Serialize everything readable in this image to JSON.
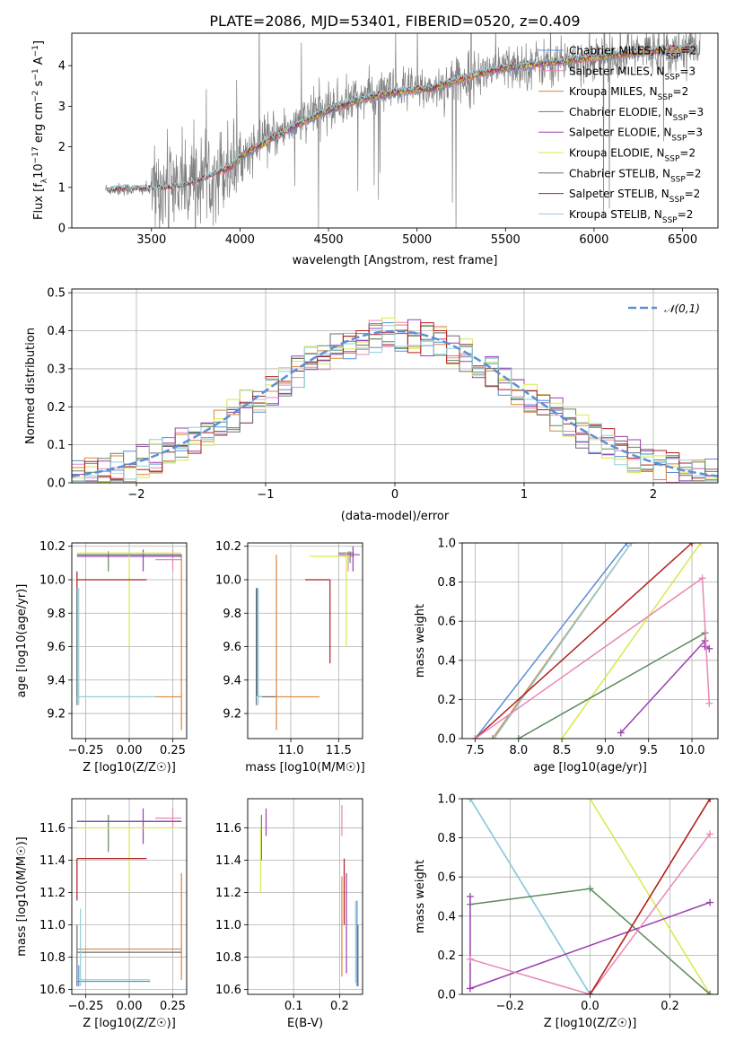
{
  "figure_title": "PLATE=2086, MJD=53401, FIBERID=0520, z=0.409",
  "model_colors": [
    "#5b8fd6",
    "#e887b8",
    "#d9853b",
    "#5c8a5c",
    "#9b3fb0",
    "#d9e84a",
    "#6b6b6b",
    "#b21f1f",
    "#8fd0d8"
  ],
  "chart_data": [
    {
      "id": "spectrum",
      "type": "line",
      "title": "PLATE=2086, MJD=53401, FIBERID=0520, z=0.409",
      "xlabel": "wavelength [Angstrom, rest frame]",
      "ylabel": "Flux [f_λ 10^-17 erg cm^-2 s^-1 A^-1]",
      "xlim": [
        3050,
        6700
      ],
      "ylim": [
        0,
        4.8
      ],
      "xticks": [
        3500,
        4000,
        4500,
        5000,
        5500,
        6000,
        6500
      ],
      "yticks": [
        0,
        1,
        2,
        3,
        4
      ],
      "grid": false,
      "legend_position": "right",
      "data_color": "#808080",
      "data_anchor_x": [
        3240,
        3500,
        3700,
        3950,
        4100,
        4300,
        4500,
        4700,
        4900,
        5100,
        5300,
        5500,
        5700,
        5900,
        6100,
        6300,
        6550
      ],
      "data_anchor_y": [
        0.95,
        0.95,
        1.15,
        1.55,
        2.05,
        2.55,
        2.95,
        3.25,
        3.4,
        3.45,
        3.75,
        3.95,
        4.05,
        4.15,
        4.25,
        4.35,
        4.45
      ],
      "model_anchor_x": [
        3240,
        3300,
        3500,
        3650,
        3800,
        3950,
        4000,
        4100,
        4300,
        4500,
        4700,
        4900,
        5100,
        5300,
        5500,
        5700,
        5900,
        6100,
        6300,
        6550
      ],
      "model_anchor_y": [
        0.9,
        0.95,
        0.95,
        1.0,
        1.2,
        1.5,
        1.75,
        2.0,
        2.5,
        2.9,
        3.2,
        3.35,
        3.45,
        3.75,
        3.95,
        4.05,
        4.15,
        4.25,
        4.35,
        4.45
      ],
      "series": [
        {
          "name": "Chabrier MILES, N_SSP=2",
          "color": "#5b8fd6",
          "x_start": 3900
        },
        {
          "name": "Salpeter MILES, N_SSP=3",
          "color": "#e887b8",
          "x_start": 3900
        },
        {
          "name": "Kroupa MILES, N_SSP=2",
          "color": "#d9853b",
          "x_start": 3900
        },
        {
          "name": "Chabrier ELODIE, N_SSP=3",
          "color": "#5c8a5c",
          "x_start": 3900
        },
        {
          "name": "Salpeter ELODIE, N_SSP=3",
          "color": "#9b3fb0",
          "x_start": 3900
        },
        {
          "name": "Kroupa ELODIE, N_SSP=2",
          "color": "#d9e84a",
          "x_start": 3900
        },
        {
          "name": "Chabrier STELIB, N_SSP=2",
          "color": "#6b6b6b",
          "x_start": 3240
        },
        {
          "name": "Salpeter STELIB, N_SSP=2",
          "color": "#b21f1f",
          "x_start": 3240
        },
        {
          "name": "Kroupa STELIB, N_SSP=2",
          "color": "#8fd0d8",
          "x_start": 3240
        }
      ]
    },
    {
      "id": "residuals",
      "type": "histogram",
      "xlabel": "(data-model)/error",
      "ylabel": "Normed distribution",
      "xlim": [
        -2.5,
        2.5
      ],
      "ylim": [
        0,
        0.51
      ],
      "xticks": [
        -2,
        -1,
        0,
        1,
        2
      ],
      "yticks": [
        0.0,
        0.1,
        0.2,
        0.3,
        0.4,
        0.5
      ],
      "grid": true,
      "legend_position": "top-right",
      "gaussian": {
        "name": "𝒩(0,1)",
        "mean": 0,
        "sigma": 1,
        "color": "#5b8fd6"
      },
      "bin_width": 0.1
    },
    {
      "id": "age_vs_Z",
      "type": "errorbar",
      "xlabel": "Z [log10(Z/Z☉)]",
      "ylabel": "age [log10(age/yr)]",
      "xlim": [
        -0.33,
        0.33
      ],
      "ylim": [
        9.05,
        10.22
      ],
      "xticks": [
        -0.25,
        0.0,
        0.25
      ],
      "yticks": [
        9.2,
        9.4,
        9.6,
        9.8,
        10.0,
        10.2
      ],
      "grid": true,
      "lines": [
        {
          "color": "#5b8fd6",
          "h": [
            -0.3,
            0.3,
            10.15
          ],
          "v": [
            -0.3,
            9.3,
            9.95
          ]
        },
        {
          "color": "#e887b8",
          "h": [
            0.15,
            0.3,
            10.12
          ],
          "v": [
            0.25,
            10.05,
            10.18
          ]
        },
        {
          "color": "#d9853b",
          "h": [
            -0.3,
            0.3,
            9.3
          ],
          "v": [
            0.3,
            9.1,
            10.15
          ]
        },
        {
          "color": "#5c8a5c",
          "h": [
            -0.3,
            0.3,
            10.15
          ],
          "v": [
            -0.12,
            10.05,
            10.17
          ]
        },
        {
          "color": "#9b3fb0",
          "h": [
            -0.3,
            0.3,
            10.14
          ],
          "v": [
            0.08,
            10.05,
            10.18
          ]
        },
        {
          "color": "#d9e84a",
          "h": [
            -0.3,
            0.3,
            10.16
          ],
          "v": [
            0.0,
            9.6,
            10.16
          ]
        },
        {
          "color": "#6b6b6b",
          "h": [
            -0.3,
            0.3,
            10.15
          ],
          "v": [
            -0.3,
            9.25,
            9.95
          ]
        },
        {
          "color": "#b21f1f",
          "h": [
            -0.3,
            0.1,
            10.0
          ],
          "v": [
            -0.3,
            9.95,
            10.05
          ]
        },
        {
          "color": "#8fd0d8",
          "h": [
            -0.3,
            0.15,
            9.3
          ],
          "v": [
            -0.29,
            9.25,
            9.95
          ]
        }
      ]
    },
    {
      "id": "age_vs_mass",
      "type": "errorbar",
      "xlabel": "mass [log10(M/M☉)]",
      "ylabel": "",
      "xlim": [
        10.55,
        11.75
      ],
      "ylim": [
        9.05,
        10.22
      ],
      "xticks": [
        11.0,
        11.5
      ],
      "yticks": [
        9.2,
        9.4,
        9.6,
        9.8,
        10.0,
        10.2
      ],
      "grid": true,
      "lines": [
        {
          "color": "#5b8fd6",
          "h": [
            10.63,
            10.7,
            9.3
          ],
          "v": [
            10.65,
            9.3,
            9.95
          ]
        },
        {
          "color": "#e887b8",
          "h": [
            11.55,
            11.66,
            10.14
          ],
          "v": [
            11.6,
            10.05,
            10.17
          ]
        },
        {
          "color": "#d9853b",
          "h": [
            10.63,
            11.3,
            9.3
          ],
          "v": [
            10.85,
            9.1,
            10.15
          ]
        },
        {
          "color": "#5c8a5c",
          "h": [
            11.5,
            11.66,
            10.16
          ],
          "v": [
            11.62,
            10.1,
            10.17
          ]
        },
        {
          "color": "#9b3fb0",
          "h": [
            11.5,
            11.72,
            10.15
          ],
          "v": [
            11.65,
            10.05,
            10.2
          ]
        },
        {
          "color": "#d9e84a",
          "h": [
            11.2,
            11.62,
            10.14
          ],
          "v": [
            11.58,
            9.6,
            10.16
          ]
        },
        {
          "color": "#6b6b6b",
          "h": [
            10.63,
            10.84,
            9.3
          ],
          "v": [
            10.64,
            9.25,
            9.95
          ]
        },
        {
          "color": "#b21f1f",
          "h": [
            11.15,
            11.41,
            10.0
          ],
          "v": [
            11.41,
            9.5,
            10.0
          ]
        },
        {
          "color": "#8fd0d8",
          "h": [
            10.63,
            10.7,
            9.3
          ],
          "v": [
            10.66,
            9.25,
            9.95
          ]
        }
      ]
    },
    {
      "id": "weight_vs_age",
      "type": "line",
      "xlabel": "age [log10(age/yr)]",
      "ylabel": "mass weight",
      "xlim": [
        7.35,
        10.3
      ],
      "ylim": [
        0.0,
        1.0
      ],
      "xticks": [
        7.5,
        8.0,
        8.5,
        9.0,
        9.5,
        10.0
      ],
      "yticks": [
        0.0,
        0.2,
        0.4,
        0.6,
        0.8,
        1.0
      ],
      "grid": true,
      "series": [
        {
          "color": "#5b8fd6",
          "x": [
            7.5,
            9.25
          ],
          "y": [
            0.0,
            1.0
          ]
        },
        {
          "color": "#d9853b",
          "x": [
            7.7,
            9.3
          ],
          "y": [
            0.0,
            1.0
          ]
        },
        {
          "color": "#8fd0d8",
          "x": [
            7.72,
            9.3
          ],
          "y": [
            0.0,
            1.0
          ]
        },
        {
          "color": "#b21f1f",
          "x": [
            7.5,
            10.0
          ],
          "y": [
            0.0,
            1.0
          ]
        },
        {
          "color": "#d9e84a",
          "x": [
            8.5,
            10.1
          ],
          "y": [
            0.0,
            1.0
          ]
        },
        {
          "color": "#5c8a5c",
          "x": [
            8.0,
            10.15
          ],
          "y": [
            0.0,
            0.54
          ]
        },
        {
          "color": "#9b3fb0",
          "x": [
            9.18,
            10.15,
            10.15,
            10.2
          ],
          "y": [
            0.03,
            0.5,
            0.47,
            0.46
          ]
        },
        {
          "color": "#e887b8",
          "x": [
            7.5,
            10.12,
            10.2
          ],
          "y": [
            0.0,
            0.82,
            0.18
          ]
        }
      ]
    },
    {
      "id": "mass_vs_Z",
      "type": "errorbar",
      "xlabel": "Z [log10(Z/Z☉)]",
      "ylabel": "mass [log10(M/M☉)]",
      "xlim": [
        -0.33,
        0.33
      ],
      "ylim": [
        10.57,
        11.78
      ],
      "xticks": [
        -0.25,
        0.0,
        0.25
      ],
      "yticks": [
        10.6,
        10.8,
        11.0,
        11.2,
        11.4,
        11.6
      ],
      "grid": true,
      "lines": [
        {
          "color": "#5b8fd6",
          "h": [
            -0.3,
            0.12,
            10.65
          ],
          "v": [
            -0.29,
            10.62,
            10.75
          ]
        },
        {
          "color": "#e887b8",
          "h": [
            0.15,
            0.3,
            11.66
          ],
          "v": [
            0.25,
            11.6,
            11.72
          ]
        },
        {
          "color": "#d9853b",
          "h": [
            -0.3,
            0.3,
            10.85
          ],
          "v": [
            0.3,
            10.66,
            11.32
          ]
        },
        {
          "color": "#5c8a5c",
          "h": [
            -0.3,
            0.3,
            11.64
          ],
          "v": [
            -0.12,
            11.45,
            11.68
          ]
        },
        {
          "color": "#9b3fb0",
          "h": [
            -0.3,
            0.3,
            11.64
          ],
          "v": [
            0.08,
            11.5,
            11.72
          ]
        },
        {
          "color": "#d9e84a",
          "h": [
            -0.3,
            0.3,
            11.6
          ],
          "v": [
            0.0,
            11.2,
            11.6
          ]
        },
        {
          "color": "#6b6b6b",
          "h": [
            -0.3,
            0.3,
            10.83
          ],
          "v": [
            -0.3,
            10.62,
            11.0
          ]
        },
        {
          "color": "#b21f1f",
          "h": [
            -0.3,
            0.1,
            11.41
          ],
          "v": [
            -0.3,
            11.15,
            11.41
          ]
        },
        {
          "color": "#8fd0d8",
          "h": [
            -0.3,
            0.12,
            10.66
          ],
          "v": [
            -0.28,
            10.62,
            11.1
          ]
        }
      ]
    },
    {
      "id": "mass_vs_ebv",
      "type": "errorbar",
      "xlabel": "E(B-V)",
      "ylabel": "",
      "xlim": [
        0.0,
        0.25
      ],
      "ylim": [
        10.57,
        11.78
      ],
      "xticks": [
        0.1,
        0.2
      ],
      "yticks": [
        10.6,
        10.8,
        11.0,
        11.2,
        11.4,
        11.6
      ],
      "grid": true,
      "lines": [
        {
          "color": "#5b8fd6",
          "v": [
            0.238,
            10.62,
            11.15
          ]
        },
        {
          "color": "#e887b8",
          "v": [
            0.205,
            11.55,
            11.74
          ]
        },
        {
          "color": "#d9853b",
          "v": [
            0.205,
            10.68,
            11.3
          ]
        },
        {
          "color": "#5c8a5c",
          "v": [
            0.03,
            11.4,
            11.68
          ]
        },
        {
          "color": "#9b3fb0",
          "v": [
            0.04,
            11.55,
            11.72
          ]
        },
        {
          "color": "#d9e84a",
          "v": [
            0.028,
            11.2,
            11.6
          ]
        },
        {
          "color": "#6b6b6b",
          "v": [
            0.24,
            10.62,
            11.0
          ]
        },
        {
          "color": "#b21f1f",
          "v": [
            0.21,
            11.0,
            11.41
          ]
        },
        {
          "color": "#8fd0d8",
          "v": [
            0.235,
            10.64,
            11.15
          ]
        },
        {
          "color": "#9b3fb0",
          "v": [
            0.215,
            10.7,
            11.32
          ]
        }
      ]
    },
    {
      "id": "weight_vs_Z",
      "type": "line",
      "xlabel": "Z [log10(Z/Z☉)]",
      "ylabel": "mass weight",
      "xlim": [
        -0.32,
        0.32
      ],
      "ylim": [
        0.0,
        1.0
      ],
      "xticks": [
        -0.2,
        0.0,
        0.2
      ],
      "yticks": [
        0.0,
        0.2,
        0.4,
        0.6,
        0.8,
        1.0
      ],
      "grid": true,
      "series": [
        {
          "color": "#5b8fd6",
          "x": [
            -0.3,
            0.0
          ],
          "y": [
            1.0,
            0.0
          ]
        },
        {
          "color": "#8fd0d8",
          "x": [
            -0.3,
            0.0
          ],
          "y": [
            1.0,
            0.0
          ]
        },
        {
          "color": "#d9e84a",
          "x": [
            0.0,
            0.3
          ],
          "y": [
            1.0,
            0.0
          ]
        },
        {
          "color": "#5c8a5c",
          "x": [
            -0.3,
            0.0,
            0.3
          ],
          "y": [
            0.46,
            0.54,
            0.0
          ]
        },
        {
          "color": "#9b3fb0",
          "x": [
            -0.3,
            -0.3,
            0.3
          ],
          "y": [
            0.5,
            0.03,
            0.47
          ]
        },
        {
          "color": "#e887b8",
          "x": [
            -0.3,
            0.0,
            0.3
          ],
          "y": [
            0.18,
            0.0,
            0.82
          ]
        },
        {
          "color": "#d9853b",
          "x": [
            0.0,
            0.3
          ],
          "y": [
            0.0,
            1.0
          ]
        },
        {
          "color": "#b21f1f",
          "x": [
            0.0,
            0.3
          ],
          "y": [
            0.0,
            1.0
          ]
        }
      ]
    }
  ]
}
